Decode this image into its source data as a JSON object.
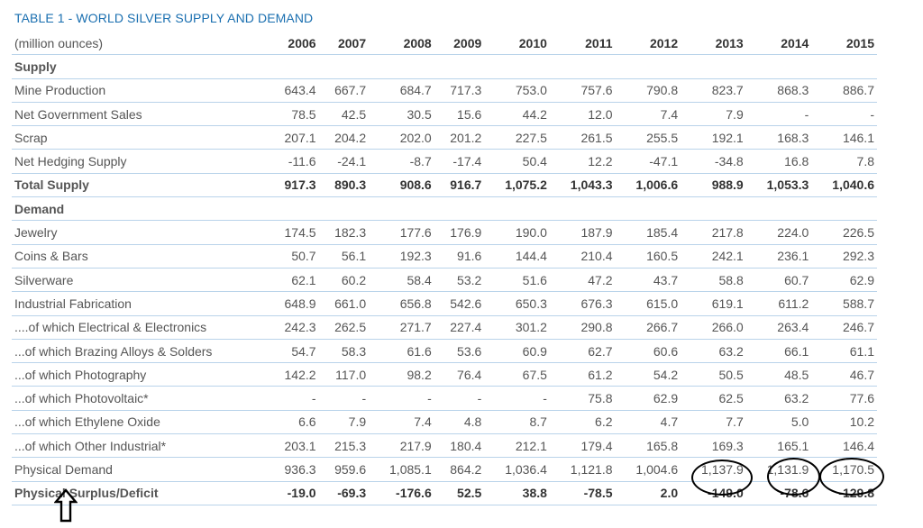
{
  "title": "TABLE 1 - WORLD SILVER SUPPLY AND DEMAND",
  "header": {
    "unit_label": "(million ounces)",
    "years": [
      "2006",
      "2007",
      "2008",
      "2009",
      "2010",
      "2011",
      "2012",
      "2013",
      "2014",
      "2015"
    ]
  },
  "rows": [
    {
      "label": "Supply",
      "type": "section",
      "values": []
    },
    {
      "label": "Mine Production",
      "type": "normal",
      "values": [
        "643.4",
        "667.7",
        "684.7",
        "717.3",
        "753.0",
        "757.6",
        "790.8",
        "823.7",
        "868.3",
        "886.7"
      ]
    },
    {
      "label": "Net Government Sales",
      "type": "normal",
      "values": [
        "78.5",
        "42.5",
        "30.5",
        "15.6",
        "44.2",
        "12.0",
        "7.4",
        "7.9",
        "-",
        "-"
      ]
    },
    {
      "label": "Scrap",
      "type": "normal",
      "values": [
        "207.1",
        "204.2",
        "202.0",
        "201.2",
        "227.5",
        "261.5",
        "255.5",
        "192.1",
        "168.3",
        "146.1"
      ]
    },
    {
      "label": "Net Hedging Supply",
      "type": "normal",
      "values": [
        "-11.6",
        "-24.1",
        "-8.7",
        "-17.4",
        "50.4",
        "12.2",
        "-47.1",
        "-34.8",
        "16.8",
        "7.8"
      ]
    },
    {
      "label": "Total Supply",
      "type": "bold",
      "values": [
        "917.3",
        "890.3",
        "908.6",
        "916.7",
        "1,075.2",
        "1,043.3",
        "1,006.6",
        "988.9",
        "1,053.3",
        "1,040.6"
      ]
    },
    {
      "label": "Demand",
      "type": "section",
      "values": []
    },
    {
      "label": "Jewelry",
      "type": "normal",
      "values": [
        "174.5",
        "182.3",
        "177.6",
        "176.9",
        "190.0",
        "187.9",
        "185.4",
        "217.8",
        "224.0",
        "226.5"
      ]
    },
    {
      "label": "Coins & Bars",
      "type": "normal",
      "values": [
        "50.7",
        "56.1",
        "192.3",
        "91.6",
        "144.4",
        "210.4",
        "160.5",
        "242.1",
        "236.1",
        "292.3"
      ]
    },
    {
      "label": "Silverware",
      "type": "normal",
      "values": [
        "62.1",
        "60.2",
        "58.4",
        "53.2",
        "51.6",
        "47.2",
        "43.7",
        "58.8",
        "60.7",
        "62.9"
      ]
    },
    {
      "label": "Industrial Fabrication",
      "type": "normal",
      "values": [
        "648.9",
        "661.0",
        "656.8",
        "542.6",
        "650.3",
        "676.3",
        "615.0",
        "619.1",
        "611.2",
        "588.7"
      ]
    },
    {
      "label": "....of which Electrical & Electronics",
      "type": "normal",
      "values": [
        "242.3",
        "262.5",
        "271.7",
        "227.4",
        "301.2",
        "290.8",
        "266.7",
        "266.0",
        "263.4",
        "246.7"
      ]
    },
    {
      "label": "...of which Brazing Alloys & Solders",
      "type": "normal",
      "values": [
        "54.7",
        "58.3",
        "61.6",
        "53.6",
        "60.9",
        "62.7",
        "60.6",
        "63.2",
        "66.1",
        "61.1"
      ]
    },
    {
      "label": "...of which Photography",
      "type": "normal",
      "values": [
        "142.2",
        "117.0",
        "98.2",
        "76.4",
        "67.5",
        "61.2",
        "54.2",
        "50.5",
        "48.5",
        "46.7"
      ]
    },
    {
      "label": "...of which Photovoltaic*",
      "type": "normal",
      "values": [
        "-",
        "-",
        "-",
        "-",
        "-",
        "75.8",
        "62.9",
        "62.5",
        "63.2",
        "77.6"
      ]
    },
    {
      "label": "...of which Ethylene Oxide",
      "type": "normal",
      "values": [
        "6.6",
        "7.9",
        "7.4",
        "4.8",
        "8.7",
        "6.2",
        "4.7",
        "7.7",
        "5.0",
        "10.2"
      ]
    },
    {
      "label": "...of which Other Industrial*",
      "type": "normal",
      "values": [
        "203.1",
        "215.3",
        "217.9",
        "180.4",
        "212.1",
        "179.4",
        "165.8",
        "169.3",
        "165.1",
        "146.4"
      ]
    },
    {
      "label": "Physical Demand",
      "type": "normal",
      "values": [
        "936.3",
        "959.6",
        "1,085.1",
        "864.2",
        "1,036.4",
        "1,121.8",
        "1,004.6",
        "1,137.9",
        "1,131.9",
        "1,170.5"
      ]
    },
    {
      "label": "Physical Surplus/Deficit",
      "type": "bold",
      "values": [
        "-19.0",
        "-69.3",
        "-176.6",
        "52.5",
        "38.8",
        "-78.5",
        "2.0",
        "-149.0",
        "-78.6",
        "-129.8"
      ]
    }
  ],
  "colors": {
    "title": "#1a6fb0",
    "rule": "#b9d3ea",
    "annotation": "#000000"
  },
  "annotations": {
    "circled_cells": [
      "2013 deficit",
      "2014 deficit",
      "2015 deficit"
    ],
    "arrow_icon": "up-arrow-outline"
  }
}
